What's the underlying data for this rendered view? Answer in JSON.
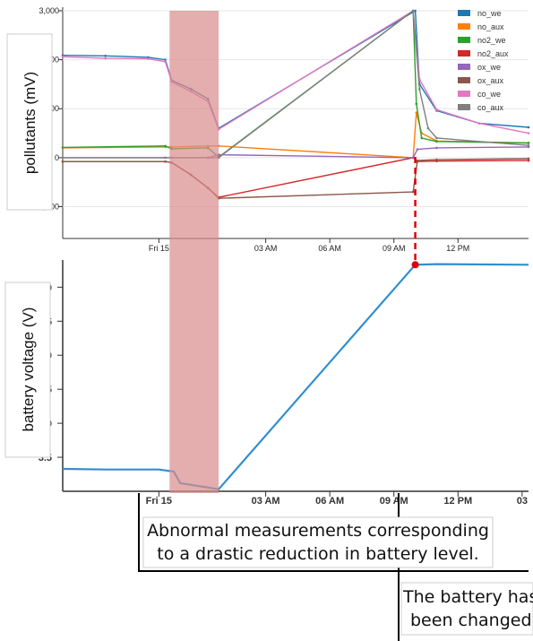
{
  "chart_data": [
    {
      "type": "line",
      "ylabel": "pollutants (mV)",
      "ylim": [
        -1650,
        3000
      ],
      "yticks": [
        3000,
        2000,
        1000,
        0,
        -1000
      ],
      "ytick_labels": [
        "3,000",
        "2,000",
        "1,000",
        "0",
        "-1,000"
      ],
      "x_ticks": [
        {
          "label": "Fri 15",
          "hour": -2.0
        },
        {
          "label": "03 AM",
          "hour": 3.0
        },
        {
          "label": "06 AM",
          "hour": 6.0
        },
        {
          "label": "09 AM",
          "hour": 9.0
        },
        {
          "label": "12 PM",
          "hour": 12.0
        }
      ],
      "xlim_hours": [
        -6.5,
        15.3
      ],
      "series": [
        {
          "name": "no_we",
          "color": "#1f77b4",
          "points": [
            [
              -6.5,
              2090
            ],
            [
              -4.5,
              2080
            ],
            [
              -2.5,
              2050
            ],
            [
              -1.7,
              2000
            ],
            [
              -1.4,
              1580
            ],
            [
              -0.5,
              1400
            ],
            [
              0.3,
              1200
            ],
            [
              0.8,
              600
            ],
            [
              10,
              3000
            ],
            [
              10.2,
              1500
            ],
            [
              11,
              960
            ],
            [
              13,
              700
            ],
            [
              15.3,
              620
            ]
          ]
        },
        {
          "name": "no_aux",
          "color": "#ff7f0e",
          "points": [
            [
              -6.5,
              200
            ],
            [
              -1.7,
              220
            ],
            [
              -1.4,
              220
            ],
            [
              0.3,
              240
            ],
            [
              0.8,
              240
            ],
            [
              9.9,
              0
            ],
            [
              10.05,
              920
            ],
            [
              10.3,
              500
            ],
            [
              11,
              340
            ],
            [
              15.3,
              300
            ]
          ]
        },
        {
          "name": "no2_we",
          "color": "#2ca02c",
          "points": [
            [
              -6.5,
              210
            ],
            [
              -1.7,
              240
            ],
            [
              -1.4,
              180
            ],
            [
              0.3,
              200
            ],
            [
              0.8,
              10
            ],
            [
              9.9,
              3000
            ],
            [
              10.05,
              1100
            ],
            [
              10.3,
              400
            ],
            [
              11,
              330
            ],
            [
              15.3,
              300
            ]
          ]
        },
        {
          "name": "no2_aux",
          "color": "#d62728",
          "points": [
            [
              -6.5,
              -80
            ],
            [
              -1.7,
              -80
            ],
            [
              -1.4,
              -100
            ],
            [
              -0.5,
              -350
            ],
            [
              0.3,
              -620
            ],
            [
              0.8,
              -810
            ],
            [
              9.9,
              0
            ],
            [
              10.1,
              -80
            ],
            [
              11,
              -70
            ],
            [
              15.3,
              -60
            ]
          ]
        },
        {
          "name": "ox_we",
          "color": "#9467bd",
          "points": [
            [
              -6.5,
              0
            ],
            [
              -1.7,
              0
            ],
            [
              -1.4,
              0
            ],
            [
              0.3,
              0
            ],
            [
              0.8,
              60
            ],
            [
              9.9,
              0
            ],
            [
              10.1,
              170
            ],
            [
              11,
              200
            ],
            [
              15.3,
              220
            ]
          ]
        },
        {
          "name": "ox_aux",
          "color": "#8c564b",
          "points": [
            [
              -6.5,
              -80
            ],
            [
              -1.7,
              -80
            ],
            [
              -1.4,
              -100
            ],
            [
              -0.5,
              -350
            ],
            [
              0.3,
              -620
            ],
            [
              0.8,
              -830
            ],
            [
              9.9,
              -700
            ],
            [
              10.1,
              -60
            ],
            [
              11,
              -40
            ],
            [
              15.3,
              -20
            ]
          ]
        },
        {
          "name": "co_we",
          "color": "#e377c2",
          "points": [
            [
              -6.5,
              2060
            ],
            [
              -4.5,
              2030
            ],
            [
              -2.5,
              2020
            ],
            [
              -1.7,
              1960
            ],
            [
              -1.4,
              1550
            ],
            [
              -0.5,
              1350
            ],
            [
              0.3,
              1150
            ],
            [
              0.8,
              580
            ],
            [
              9.9,
              3000
            ],
            [
              10.2,
              1600
            ],
            [
              11,
              980
            ],
            [
              13,
              700
            ],
            [
              15.3,
              500
            ]
          ]
        },
        {
          "name": "co_aux",
          "color": "#7f7f7f",
          "points": [
            [
              -6.5,
              0
            ],
            [
              -1.7,
              0
            ],
            [
              -1.4,
              0
            ],
            [
              0.3,
              0
            ],
            [
              0.8,
              0
            ],
            [
              9.9,
              3000
            ],
            [
              10.2,
              1400
            ],
            [
              10.6,
              600
            ],
            [
              11,
              400
            ],
            [
              15.3,
              250
            ]
          ]
        }
      ]
    },
    {
      "type": "line",
      "ylabel": "battery voltage (V)",
      "ylim": [
        3.0,
        6.4
      ],
      "yticks": [
        3.5,
        4.0,
        4.5,
        5.0,
        5.5,
        6.0
      ],
      "ytick_labels": [
        "3.5",
        "4.0",
        "4.5",
        "5.0",
        "5.5",
        "6.0"
      ],
      "x_ticks": [
        {
          "label": "Fri 15",
          "hour": -2.0
        },
        {
          "label": "03 AM",
          "hour": 3.0
        },
        {
          "label": "06 AM",
          "hour": 6.0
        },
        {
          "label": "09 AM",
          "hour": 9.0
        },
        {
          "label": "12 PM",
          "hour": 12.0
        },
        {
          "label": "03",
          "hour": 15.0
        }
      ],
      "xlim_hours": [
        -6.5,
        15.3
      ],
      "series": [
        {
          "name": "battery",
          "color": "#2f8fcf",
          "points": [
            [
              -6.5,
              3.33
            ],
            [
              -4.5,
              3.32
            ],
            [
              -2.0,
              3.32
            ],
            [
              -1.3,
              3.29
            ],
            [
              -1.0,
              3.12
            ],
            [
              0.0,
              3.07
            ],
            [
              0.8,
              3.03
            ],
            [
              10.0,
              6.33
            ],
            [
              11.0,
              6.34
            ],
            [
              15.3,
              6.33
            ]
          ]
        }
      ],
      "battery_change_point": [
        10.0,
        6.33
      ]
    }
  ],
  "highlight": {
    "label": "",
    "color": "#d98b8b",
    "start_hour": -1.5,
    "end_hour": 0.8
  },
  "annotations": {
    "abnormal_line1": "Abnormal measurements corresponding",
    "abnormal_line2": "to a drastic reduction in battery level.",
    "changed_line1": "The battery has",
    "changed_line2": "been changed."
  },
  "marker_color": "#e00000"
}
